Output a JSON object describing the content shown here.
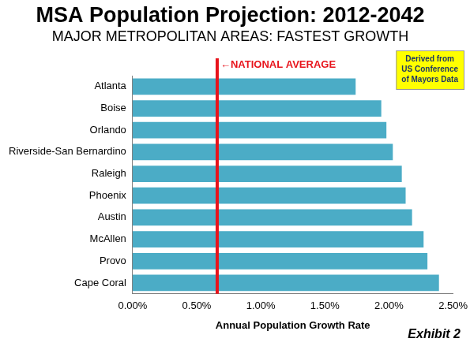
{
  "chart_data": {
    "type": "bar",
    "orientation": "horizontal",
    "title": "MSA Population Projection: 2012-2042",
    "subtitle": "MAJOR METROPOLITAN AREAS: FASTEST GROWTH",
    "x_label": "Annual Population Growth Rate",
    "categories": [
      "Atlanta",
      "Boise",
      "Orlando",
      "Riverside-San Bernardino",
      "Raleigh",
      "Phoenix",
      "Austin",
      "McAllen",
      "Provo",
      "Cape Coral"
    ],
    "values": [
      1.74,
      1.94,
      1.98,
      2.03,
      2.1,
      2.13,
      2.18,
      2.27,
      2.3,
      2.39
    ],
    "color": "#4bacc6",
    "xlim": [
      0,
      2.5
    ],
    "xticks": [
      {
        "value": 0,
        "label": "0.00%"
      },
      {
        "value": 0.5,
        "label": "0.50%"
      },
      {
        "value": 1,
        "label": "1.00%"
      },
      {
        "value": 1.5,
        "label": "1.50%"
      },
      {
        "value": 2,
        "label": "2.00%"
      },
      {
        "value": 2.5,
        "label": "2.50%"
      }
    ],
    "grid": false,
    "annotations": [
      {
        "x": 0.66,
        "text": "←NATIONAL AVERAGE",
        "color": "#e8141c"
      }
    ],
    "note": {
      "text": [
        "Derived from",
        "US Conference",
        "of Mayors Data"
      ],
      "color": "#ffff00"
    },
    "footer": "Exhibit 2"
  }
}
